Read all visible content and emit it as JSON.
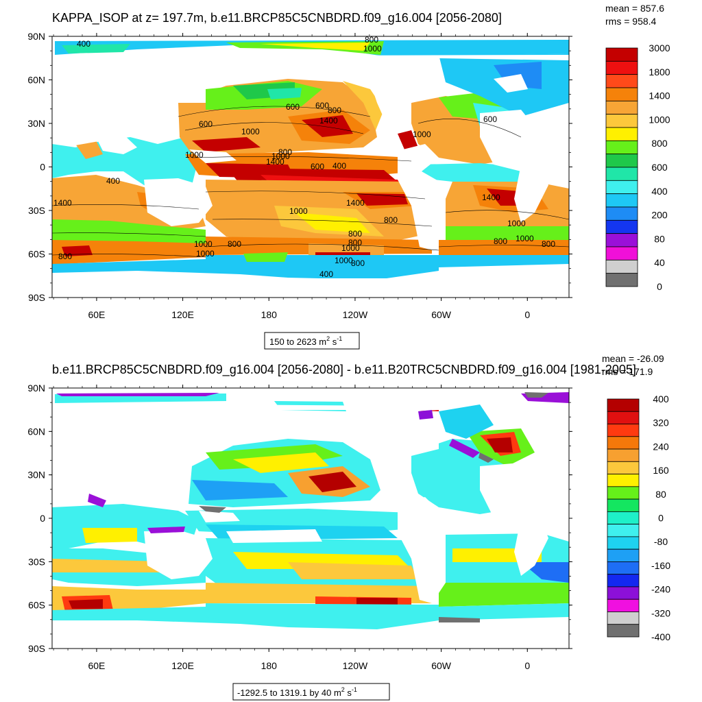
{
  "panels": [
    {
      "title": "KAPPA_ISOP at z= 197.7m, b.e11.BRCP85C5CNBDRD.f09_g16.004 [2056-2080]",
      "stats": {
        "mean": "mean = 857.6",
        "rms": "rms = 958.4"
      },
      "lat_labels": [
        "90N",
        "60N",
        "30N",
        "0",
        "30S",
        "60S",
        "90S"
      ],
      "lon_labels": [
        "60E",
        "120E",
        "180",
        "120W",
        "60W",
        "0"
      ],
      "range": {
        "text": "150 to 2623 m",
        "sup1": "2",
        "mid": " s",
        "sup2": "-1"
      },
      "colorbar": {
        "labels": [
          "3000",
          "1800",
          "1400",
          "1000",
          "800",
          "600",
          "400",
          "200",
          "80",
          "40",
          "0"
        ],
        "colors": [
          "#c40000",
          "#ee1010",
          "#ff4a1a",
          "#f5820a",
          "#f7a536",
          "#fcc83c",
          "#fff000",
          "#66f01a",
          "#1fc84a",
          "#20e6a8",
          "#3ff0ee",
          "#1ec8f5",
          "#1e8cf5",
          "#1436f0",
          "#9a10d8",
          "#f010d8",
          "#cfcfcf",
          "#707070"
        ]
      },
      "contour_labels": [
        "400",
        "800",
        "1000",
        "600",
        "800",
        "1000",
        "1400",
        "1000",
        "600",
        "800",
        "1400",
        "1400",
        "400",
        "400",
        "600",
        "1400",
        "1000",
        "1000",
        "800",
        "800",
        "1000",
        "800",
        "1000",
        "600",
        "800",
        "1400",
        "1000",
        "800",
        "1000",
        "400",
        "800",
        "1000",
        "600",
        "800",
        "1000",
        "1000",
        "800"
      ]
    },
    {
      "title": "b.e11.BRCP85C5CNBDRD.f09_g16.004 [2056-2080] - b.e11.B20TRC5CNBDRD.f09_g16.004 [1981-2005]",
      "stats": {
        "mean": "mean = -26.09",
        "rms": "rms = 171.9"
      },
      "lat_labels": [
        "90N",
        "60N",
        "30N",
        "0",
        "30S",
        "60S",
        "90S"
      ],
      "lon_labels": [
        "60E",
        "120E",
        "180",
        "120W",
        "60W",
        "0"
      ],
      "range": {
        "text": "-1292.5 to 1319.1 by 40 m",
        "sup1": "2",
        "mid": " s",
        "sup2": "-1"
      },
      "colorbar": {
        "labels": [
          "400",
          "320",
          "240",
          "160",
          "80",
          "0",
          "-80",
          "-160",
          "-240",
          "-320",
          "-400"
        ],
        "colors": [
          "#b40000",
          "#e01010",
          "#ff3a10",
          "#f5780a",
          "#f7a030",
          "#fcc83c",
          "#fff000",
          "#66f01a",
          "#14e660",
          "#1ef0c8",
          "#3ff0ee",
          "#1ed2f0",
          "#1ea0f5",
          "#1e6ef5",
          "#1428f0",
          "#8c10d8",
          "#f010e0",
          "#cfcfcf",
          "#707070"
        ]
      }
    }
  ]
}
